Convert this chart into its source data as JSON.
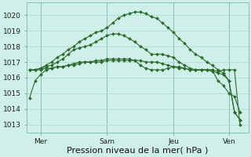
{
  "bg_color": "#cef0e8",
  "grid_color": "#a8d8cc",
  "line_color": "#2d6a2d",
  "xlabel": "Pression niveau de la mer( hPa )",
  "xlabel_fontsize": 8,
  "ylim": [
    1012.5,
    1020.8
  ],
  "yticks": [
    1013,
    1014,
    1015,
    1016,
    1017,
    1018,
    1019,
    1020
  ],
  "xtick_labels": [
    "Mer",
    "Sam",
    "Jeu",
    "Ven"
  ],
  "xtick_positions": [
    2,
    14,
    26,
    36
  ],
  "vline_positions": [
    2,
    14,
    26,
    36
  ],
  "series": [
    [
      1014.7,
      1015.8,
      1016.2,
      1016.5,
      1016.6,
      1016.7,
      1016.7,
      1016.8,
      1016.9,
      1017.0,
      1017.0,
      1017.0,
      1017.1,
      1017.1,
      1017.2,
      1017.2,
      1017.2,
      1017.2,
      1017.2,
      1017.1,
      1016.8,
      1016.6,
      1016.5,
      1016.5,
      1016.5,
      1016.6,
      1016.7,
      1016.7,
      1016.6,
      1016.5,
      1016.5,
      1016.5,
      1016.5,
      1016.5,
      1015.8,
      1015.5,
      1015.0,
      1014.8,
      1013.8
    ],
    [
      1016.5,
      1016.5,
      1016.5,
      1016.6,
      1016.6,
      1016.7,
      1016.7,
      1016.8,
      1016.8,
      1016.9,
      1017.0,
      1017.0,
      1017.0,
      1017.0,
      1017.1,
      1017.1,
      1017.1,
      1017.1,
      1017.1,
      1017.1,
      1017.1,
      1017.0,
      1017.0,
      1017.0,
      1016.9,
      1016.8,
      1016.7,
      1016.6,
      1016.6,
      1016.5,
      1016.5,
      1016.5,
      1016.5,
      1016.5,
      1016.4,
      1016.5,
      1016.5,
      1016.5,
      1013.0
    ],
    [
      1016.5,
      1016.5,
      1016.6,
      1016.7,
      1016.8,
      1017.0,
      1017.2,
      1017.5,
      1017.8,
      1017.9,
      1018.0,
      1018.1,
      1018.3,
      1018.5,
      1018.7,
      1018.8,
      1018.8,
      1018.7,
      1018.5,
      1018.3,
      1018.0,
      1017.8,
      1017.5,
      1017.5,
      1017.5,
      1017.4,
      1017.3,
      1017.0,
      1016.8,
      1016.6,
      1016.5,
      1016.5,
      1016.5,
      1016.4,
      1016.3,
      1016.2,
      1015.8,
      1013.8,
      1013.3
    ],
    [
      1016.5,
      1016.5,
      1016.6,
      1016.8,
      1017.0,
      1017.3,
      1017.5,
      1017.8,
      1018.0,
      1018.3,
      1018.5,
      1018.7,
      1018.9,
      1019.0,
      1019.2,
      1019.5,
      1019.8,
      1020.0,
      1020.1,
      1020.2,
      1020.2,
      1020.1,
      1019.9,
      1019.8,
      1019.5,
      1019.2,
      1018.9,
      1018.5,
      1018.2,
      1017.8,
      1017.5,
      1017.3,
      1017.0,
      1016.8,
      1016.5,
      1016.3,
      1015.8,
      1013.8,
      1013.3
    ]
  ],
  "x_count": 39,
  "xlim": [
    -0.5,
    39.5
  ],
  "figsize": [
    3.2,
    2.0
  ],
  "dpi": 100
}
